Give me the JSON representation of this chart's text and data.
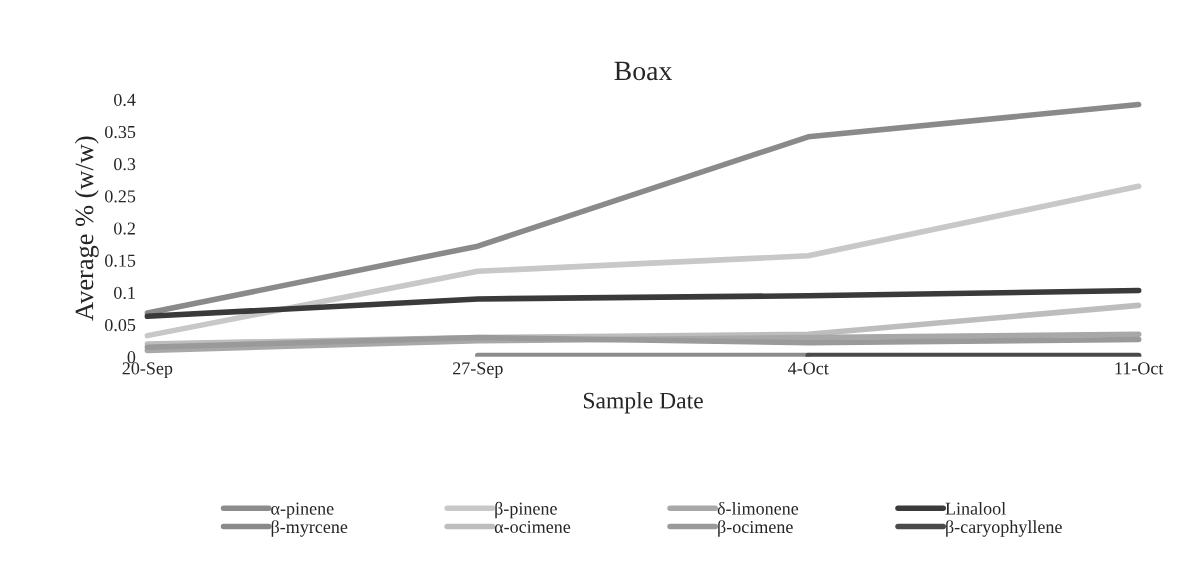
{
  "chart_data": {
    "type": "line",
    "title": "Boax",
    "xlabel": "Sample Date",
    "ylabel": "Average % (w/w)",
    "categories": [
      "20-Sep",
      "27-Sep",
      "4-Oct",
      "11-Oct"
    ],
    "series": [
      {
        "name": "α-pinene",
        "color": "#8c8c8c",
        "values": [
          null,
          0.002,
          0.002,
          null
        ]
      },
      {
        "name": "β-myrcene",
        "color": "#8a8a8a",
        "values": [
          0.068,
          0.172,
          0.342,
          0.392
        ]
      },
      {
        "name": "β-pinene",
        "color": "#c8c8c8",
        "values": [
          0.033,
          0.133,
          0.157,
          0.265
        ]
      },
      {
        "name": "α-ocimene",
        "color": "#bdbdbd",
        "values": [
          0.02,
          0.03,
          0.035,
          0.08
        ]
      },
      {
        "name": "δ-limonene",
        "color": "#a8a8a8",
        "values": [
          0.01,
          0.025,
          0.03,
          0.035
        ]
      },
      {
        "name": "β-ocimene",
        "color": "#9a9a9a",
        "values": [
          0.015,
          0.03,
          0.022,
          0.027
        ]
      },
      {
        "name": "Linalool",
        "color": "#3a3a3a",
        "values": [
          0.063,
          0.09,
          0.095,
          0.103
        ]
      },
      {
        "name": "β-caryophyllene",
        "color": "#4a4a4a",
        "values": [
          null,
          null,
          0.002,
          0.002
        ]
      }
    ],
    "ylim": [
      0,
      0.4
    ],
    "yticks": [
      0,
      0.05,
      0.1,
      0.15,
      0.2,
      0.25,
      0.3,
      0.35,
      0.4
    ],
    "grid": false,
    "legend": "bottom",
    "line_style": "solid",
    "marker": "none"
  }
}
